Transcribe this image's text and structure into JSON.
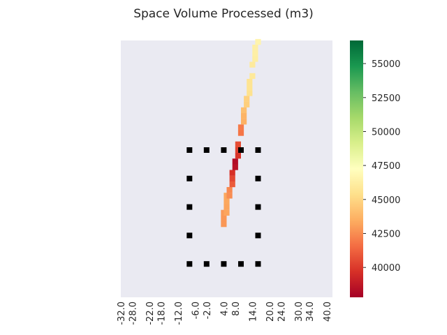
{
  "chart_data": {
    "type": "heatmap",
    "title": "Space Volume Processed (m3)",
    "xlabel": "",
    "ylabel": "",
    "x_tick_labels": [
      "-32.0",
      "-28.0",
      "-22.0",
      "-18.0",
      "-12.0",
      "-6.0",
      "-2.0",
      "4.0",
      "8.0",
      "14.0",
      "20.0",
      "24.0",
      "30.0",
      "34.0",
      "40.0"
    ],
    "x_ticks_at": [
      -32,
      -28,
      -22,
      -18,
      -12,
      -6,
      -2,
      4,
      8,
      14,
      20,
      24,
      30,
      34,
      40
    ],
    "xlim": [
      -32,
      42
    ],
    "y_ticks_shown": false,
    "background_color": "#eaeaf2",
    "colormap": "RdYlGn",
    "colorbar": {
      "range": [
        37800,
        56700
      ],
      "ticks": [
        40000,
        42500,
        45000,
        47500,
        50000,
        52500,
        55000
      ],
      "tick_labels": [
        "40000",
        "42500",
        "45000",
        "47500",
        "50000",
        "52500",
        "55000"
      ]
    },
    "cells": [
      {
        "x": 4,
        "y": 10,
        "value": 42800
      },
      {
        "x": 4,
        "y": 11,
        "value": 42800
      },
      {
        "x": 4,
        "y": 12,
        "value": 42900
      },
      {
        "x": 5,
        "y": 12,
        "value": 43200
      },
      {
        "x": 5,
        "y": 13,
        "value": 43200
      },
      {
        "x": 5,
        "y": 14,
        "value": 43300
      },
      {
        "x": 5,
        "y": 15,
        "value": 43300
      },
      {
        "x": 6,
        "y": 15,
        "value": 42500
      },
      {
        "x": 6,
        "y": 16,
        "value": 42400
      },
      {
        "x": 7,
        "y": 17,
        "value": 41000
      },
      {
        "x": 7,
        "y": 18,
        "value": 40400
      },
      {
        "x": 7,
        "y": 19,
        "value": 39700
      },
      {
        "x": 8,
        "y": 20,
        "value": 38500
      },
      {
        "x": 8,
        "y": 21,
        "value": 38300
      },
      {
        "x": 9,
        "y": 22,
        "value": 39800
      },
      {
        "x": 9,
        "y": 23,
        "value": 40200
      },
      {
        "x": 9,
        "y": 24,
        "value": 40600
      },
      {
        "x": 10,
        "y": 26,
        "value": 41800
      },
      {
        "x": 10,
        "y": 27,
        "value": 42000
      },
      {
        "x": 11,
        "y": 28,
        "value": 43600
      },
      {
        "x": 11,
        "y": 29,
        "value": 43700
      },
      {
        "x": 11,
        "y": 30,
        "value": 44100
      },
      {
        "x": 12,
        "y": 31,
        "value": 44700
      },
      {
        "x": 12,
        "y": 32,
        "value": 44800
      },
      {
        "x": 13,
        "y": 33,
        "value": 45500
      },
      {
        "x": 13,
        "y": 34,
        "value": 45600
      },
      {
        "x": 13,
        "y": 35,
        "value": 45600
      },
      {
        "x": 14,
        "y": 36,
        "value": 45900
      },
      {
        "x": 14,
        "y": 38,
        "value": 46000
      },
      {
        "x": 15,
        "y": 39,
        "value": 46200
      },
      {
        "x": 15,
        "y": 40,
        "value": 46300
      },
      {
        "x": 15,
        "y": 41,
        "value": 46300
      },
      {
        "x": 16,
        "y": 42,
        "value": 46600
      }
    ],
    "markers": [
      {
        "x": -8,
        "y": 3
      },
      {
        "x": -2,
        "y": 3
      },
      {
        "x": 4,
        "y": 3
      },
      {
        "x": 10,
        "y": 3
      },
      {
        "x": 16,
        "y": 3
      },
      {
        "x": -8,
        "y": 8
      },
      {
        "x": 16,
        "y": 8
      },
      {
        "x": -8,
        "y": 13
      },
      {
        "x": 16,
        "y": 13
      },
      {
        "x": -8,
        "y": 18
      },
      {
        "x": 16,
        "y": 18
      },
      {
        "x": -8,
        "y": 23
      },
      {
        "x": -2,
        "y": 23
      },
      {
        "x": 4,
        "y": 23
      },
      {
        "x": 10,
        "y": 23
      },
      {
        "x": 16,
        "y": 23
      }
    ],
    "marker_color": "#000000",
    "grid": false,
    "legend": "none"
  }
}
